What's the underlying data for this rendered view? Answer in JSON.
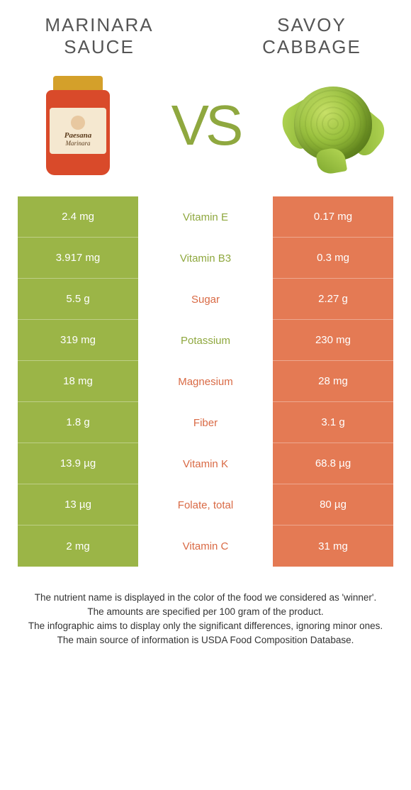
{
  "colors": {
    "left": "#9bb547",
    "right": "#e47a54",
    "left_text": "#8fa83f",
    "right_text": "#d96a45"
  },
  "foods": {
    "left": {
      "name": "MARINARA SAUCE",
      "label_main": "Paesana",
      "label_sub": "Marinara"
    },
    "right": {
      "name": "SAVOY CABBAGE"
    }
  },
  "vs_text": "VS",
  "rows": [
    {
      "nutrient": "Vitamin E",
      "left": "2.4 mg",
      "right": "0.17 mg",
      "winner": "left"
    },
    {
      "nutrient": "Vitamin B3",
      "left": "3.917 mg",
      "right": "0.3 mg",
      "winner": "left"
    },
    {
      "nutrient": "Sugar",
      "left": "5.5 g",
      "right": "2.27 g",
      "winner": "right"
    },
    {
      "nutrient": "Potassium",
      "left": "319 mg",
      "right": "230 mg",
      "winner": "left"
    },
    {
      "nutrient": "Magnesium",
      "left": "18 mg",
      "right": "28 mg",
      "winner": "right"
    },
    {
      "nutrient": "Fiber",
      "left": "1.8 g",
      "right": "3.1 g",
      "winner": "right"
    },
    {
      "nutrient": "Vitamin K",
      "left": "13.9 µg",
      "right": "68.8 µg",
      "winner": "right"
    },
    {
      "nutrient": "Folate, total",
      "left": "13 µg",
      "right": "80 µg",
      "winner": "right"
    },
    {
      "nutrient": "Vitamin C",
      "left": "2 mg",
      "right": "31 mg",
      "winner": "right"
    }
  ],
  "footer": [
    "The nutrient name is displayed in the color of the food we considered as 'winner'.",
    "The amounts are specified per 100 gram of the product.",
    "The infographic aims to display only the significant differences, ignoring minor ones.",
    "The main source of information is USDA Food Composition Database."
  ]
}
